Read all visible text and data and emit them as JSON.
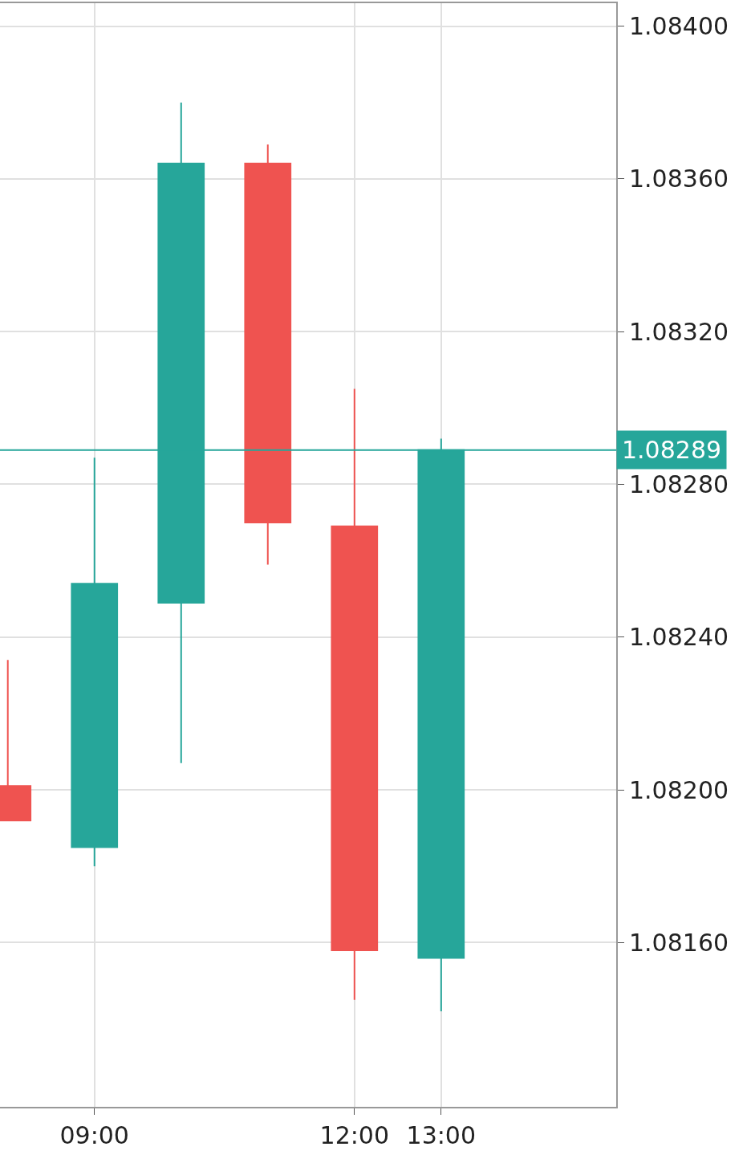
{
  "chart_data": {
    "type": "candlestick",
    "x": [
      8,
      9,
      10,
      11,
      12,
      13
    ],
    "ohlc": [
      [
        1.08201,
        1.08234,
        1.08192,
        1.08192
      ],
      [
        1.08185,
        1.08287,
        1.0818,
        1.08254
      ],
      [
        1.08249,
        1.0838,
        1.08207,
        1.08364
      ],
      [
        1.08364,
        1.08369,
        1.08259,
        1.0827
      ],
      [
        1.08269,
        1.08305,
        1.08145,
        1.08158
      ],
      [
        1.08156,
        1.08292,
        1.08142,
        1.08289
      ]
    ],
    "colors": [
      "#ef5350",
      "#26a69a",
      "#26a69a",
      "#ef5350",
      "#ef5350",
      "#26a69a"
    ],
    "xlim": [
      7.91,
      15.02
    ],
    "xticks": [
      {
        "value": 9,
        "label": "09:00"
      },
      {
        "value": 12,
        "label": "12:00"
      },
      {
        "value": 13,
        "label": "13:00"
      }
    ],
    "ylim": [
      1.08117,
      1.08406
    ],
    "yticks": [
      {
        "value": 1.0816,
        "label": "1.08160"
      },
      {
        "value": 1.082,
        "label": "1.08200"
      },
      {
        "value": 1.0824,
        "label": "1.08240"
      },
      {
        "value": 1.0828,
        "label": "1.08280"
      },
      {
        "value": 1.0832,
        "label": "1.08320"
      },
      {
        "value": 1.0836,
        "label": "1.08360"
      },
      {
        "value": 1.084,
        "label": "1.08400"
      }
    ],
    "ref_lines": [
      {
        "axis": "y",
        "value": 1.08289,
        "label": "1.08289",
        "color": "#26a69a"
      }
    ],
    "grid": true
  }
}
